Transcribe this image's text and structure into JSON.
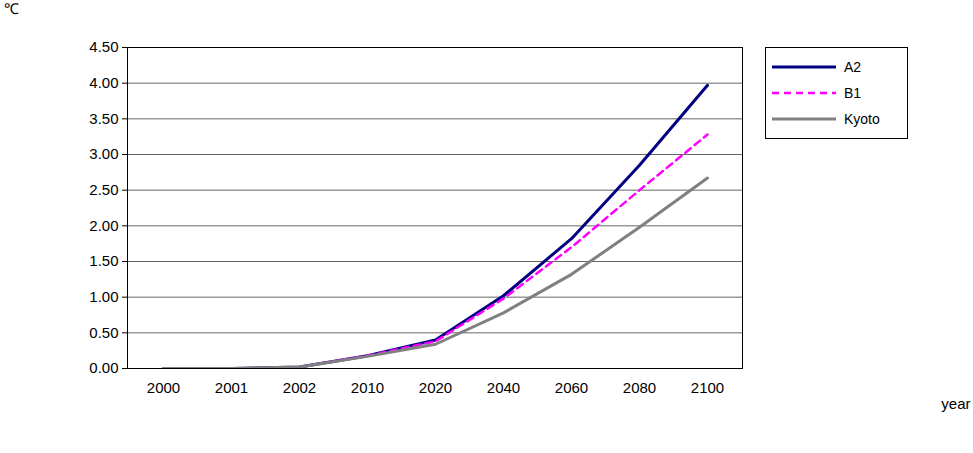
{
  "chart_data": {
    "type": "line",
    "x_label": "year",
    "y_label": "℃",
    "categories": [
      "2000",
      "2001",
      "2002",
      "2010",
      "2020",
      "2040",
      "2060",
      "2080",
      "2100"
    ],
    "series": [
      {
        "name": "A2",
        "color": "#000080",
        "line_style": "solid",
        "values": [
          0,
          0,
          0.02,
          0.18,
          0.4,
          1.02,
          1.82,
          2.85,
          3.97
        ]
      },
      {
        "name": "B1",
        "color": "#ff00ff",
        "line_style": "dashed",
        "values": [
          0,
          0,
          0.02,
          0.18,
          0.38,
          0.98,
          1.7,
          2.5,
          3.28
        ]
      },
      {
        "name": "Kyoto",
        "color": "#808080",
        "line_style": "solid",
        "values": [
          0,
          0,
          0.02,
          0.17,
          0.34,
          0.78,
          1.32,
          1.98,
          2.67
        ]
      }
    ],
    "ylim": [
      0,
      4.5
    ],
    "yticks": [
      {
        "value": 0,
        "label": "0.00"
      },
      {
        "value": 0.5,
        "label": "0.50"
      },
      {
        "value": 1,
        "label": "1.00"
      },
      {
        "value": 1.5,
        "label": "1.50"
      },
      {
        "value": 2,
        "label": "2.00"
      },
      {
        "value": 2.5,
        "label": "2.50"
      },
      {
        "value": 3,
        "label": "3.00"
      },
      {
        "value": 3.5,
        "label": "3.50"
      },
      {
        "value": 4,
        "label": "4.00"
      },
      {
        "value": 4.5,
        "label": "4.50"
      }
    ],
    "grid": true,
    "legend": "right"
  }
}
